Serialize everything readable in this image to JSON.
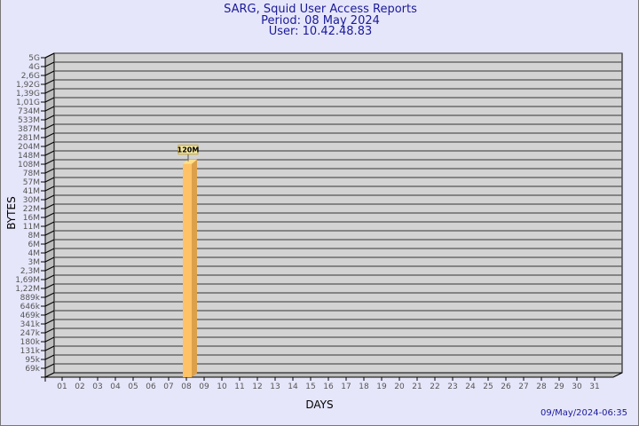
{
  "chart_data": {
    "type": "bar",
    "title": "SARG, Squid User Access Reports",
    "subtitle": [
      "Period: 08 May 2024",
      "User: 10.42.48.83"
    ],
    "xlabel": "DAYS",
    "ylabel": "BYTES",
    "y_scale": "log",
    "y_ticks": [
      "5G",
      "4G",
      "2,6G",
      "1,92G",
      "1,39G",
      "1,01G",
      "734M",
      "533M",
      "387M",
      "281M",
      "204M",
      "148M",
      "108M",
      "78M",
      "57M",
      "41M",
      "30M",
      "22M",
      "16M",
      "11M",
      "8M",
      "6M",
      "4M",
      "3M",
      "2,3M",
      "1,69M",
      "1,22M",
      "889k",
      "646k",
      "469k",
      "341k",
      "247k",
      "180k",
      "131k",
      "95k",
      "69k"
    ],
    "categories": [
      "01",
      "02",
      "03",
      "04",
      "05",
      "06",
      "07",
      "08",
      "09",
      "10",
      "11",
      "12",
      "13",
      "14",
      "15",
      "16",
      "17",
      "18",
      "19",
      "20",
      "21",
      "22",
      "23",
      "24",
      "25",
      "26",
      "27",
      "28",
      "29",
      "30",
      "31"
    ],
    "values": [
      null,
      null,
      null,
      null,
      null,
      null,
      null,
      120000000,
      null,
      null,
      null,
      null,
      null,
      null,
      null,
      null,
      null,
      null,
      null,
      null,
      null,
      null,
      null,
      null,
      null,
      null,
      null,
      null,
      null,
      null,
      null
    ],
    "data_labels": {
      "08": "120M"
    },
    "grid": true,
    "colors": {
      "bar": "#ffc266",
      "bar_side": "#dda04a",
      "plot_bg": "#d3d3d3",
      "title": "#1a1a9a"
    }
  },
  "footer": {
    "timestamp": "09/May/2024-06:35"
  }
}
